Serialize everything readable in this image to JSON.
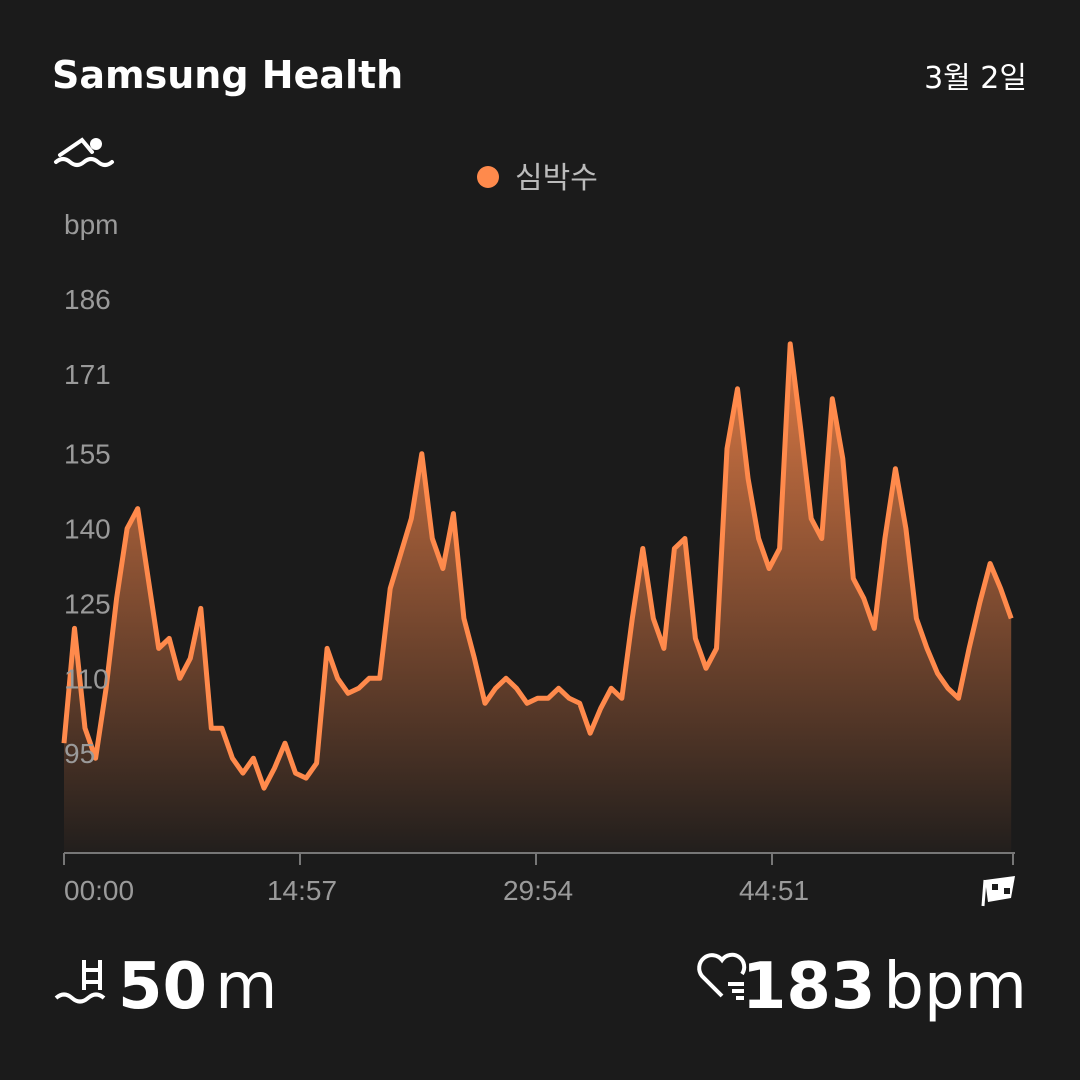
{
  "header": {
    "app_name": "Samsung Health",
    "date": "3월 2일"
  },
  "chart_data": {
    "type": "area",
    "y_label": "bpm",
    "series": [
      {
        "name": "심박수",
        "color": "#ff8a4c",
        "values": [
          97,
          120,
          100,
          94,
          108,
          126,
          140,
          144,
          130,
          116,
          118,
          110,
          114,
          124,
          100,
          100,
          94,
          91,
          94,
          88,
          92,
          97,
          91,
          90,
          93,
          116,
          110,
          107,
          108,
          110,
          110,
          128,
          135,
          142,
          155,
          138,
          132,
          143,
          122,
          114,
          105,
          108,
          110,
          108,
          105,
          106,
          106,
          108,
          106,
          105,
          99,
          104,
          108,
          106,
          122,
          136,
          122,
          116,
          136,
          138,
          118,
          112,
          116,
          156,
          168,
          150,
          138,
          132,
          136,
          177,
          160,
          142,
          138,
          166,
          154,
          130,
          126,
          120,
          138,
          152,
          140,
          122,
          116,
          111,
          108,
          106,
          116,
          125,
          133,
          128,
          122
        ]
      }
    ],
    "x": [
      0,
      40,
      80,
      120,
      160,
      200,
      240,
      280,
      320,
      360,
      400,
      440,
      480,
      520,
      560,
      600,
      640,
      680,
      720,
      760,
      800,
      840,
      880,
      920,
      960,
      1000,
      1040,
      1080,
      1120,
      1160,
      1200,
      1240,
      1280,
      1320,
      1360,
      1400,
      1440,
      1480,
      1520,
      1560,
      1600,
      1640,
      1680,
      1720,
      1760,
      1800,
      1840,
      1880,
      1920,
      1960,
      2000,
      2040,
      2080,
      2120,
      2160,
      2200,
      2240,
      2280,
      2320,
      2360,
      2400,
      2440,
      2480,
      2520,
      2560,
      2600,
      2640,
      2680,
      2720,
      2760,
      2800,
      2840,
      2880,
      2920,
      2960,
      3000,
      3040,
      3080,
      3120,
      3160,
      3200,
      3240,
      3280,
      3320,
      3360,
      3400,
      3440,
      3480,
      3520,
      3560,
      3600
    ],
    "xlim": [
      0,
      3607
    ],
    "xticks": [
      {
        "value": 0,
        "label": "00:00"
      },
      {
        "value": 897,
        "label": "14:57"
      },
      {
        "value": 1794,
        "label": "29:54"
      },
      {
        "value": 2691,
        "label": "44:51"
      }
    ],
    "ylim": [
      75,
      190
    ],
    "yticks": [
      186,
      171,
      155,
      140,
      125,
      110,
      95
    ]
  },
  "summary": {
    "distance": 50,
    "distance_unit": "m",
    "max_heart_rate": 183,
    "heart_rate_unit": "bpm"
  }
}
